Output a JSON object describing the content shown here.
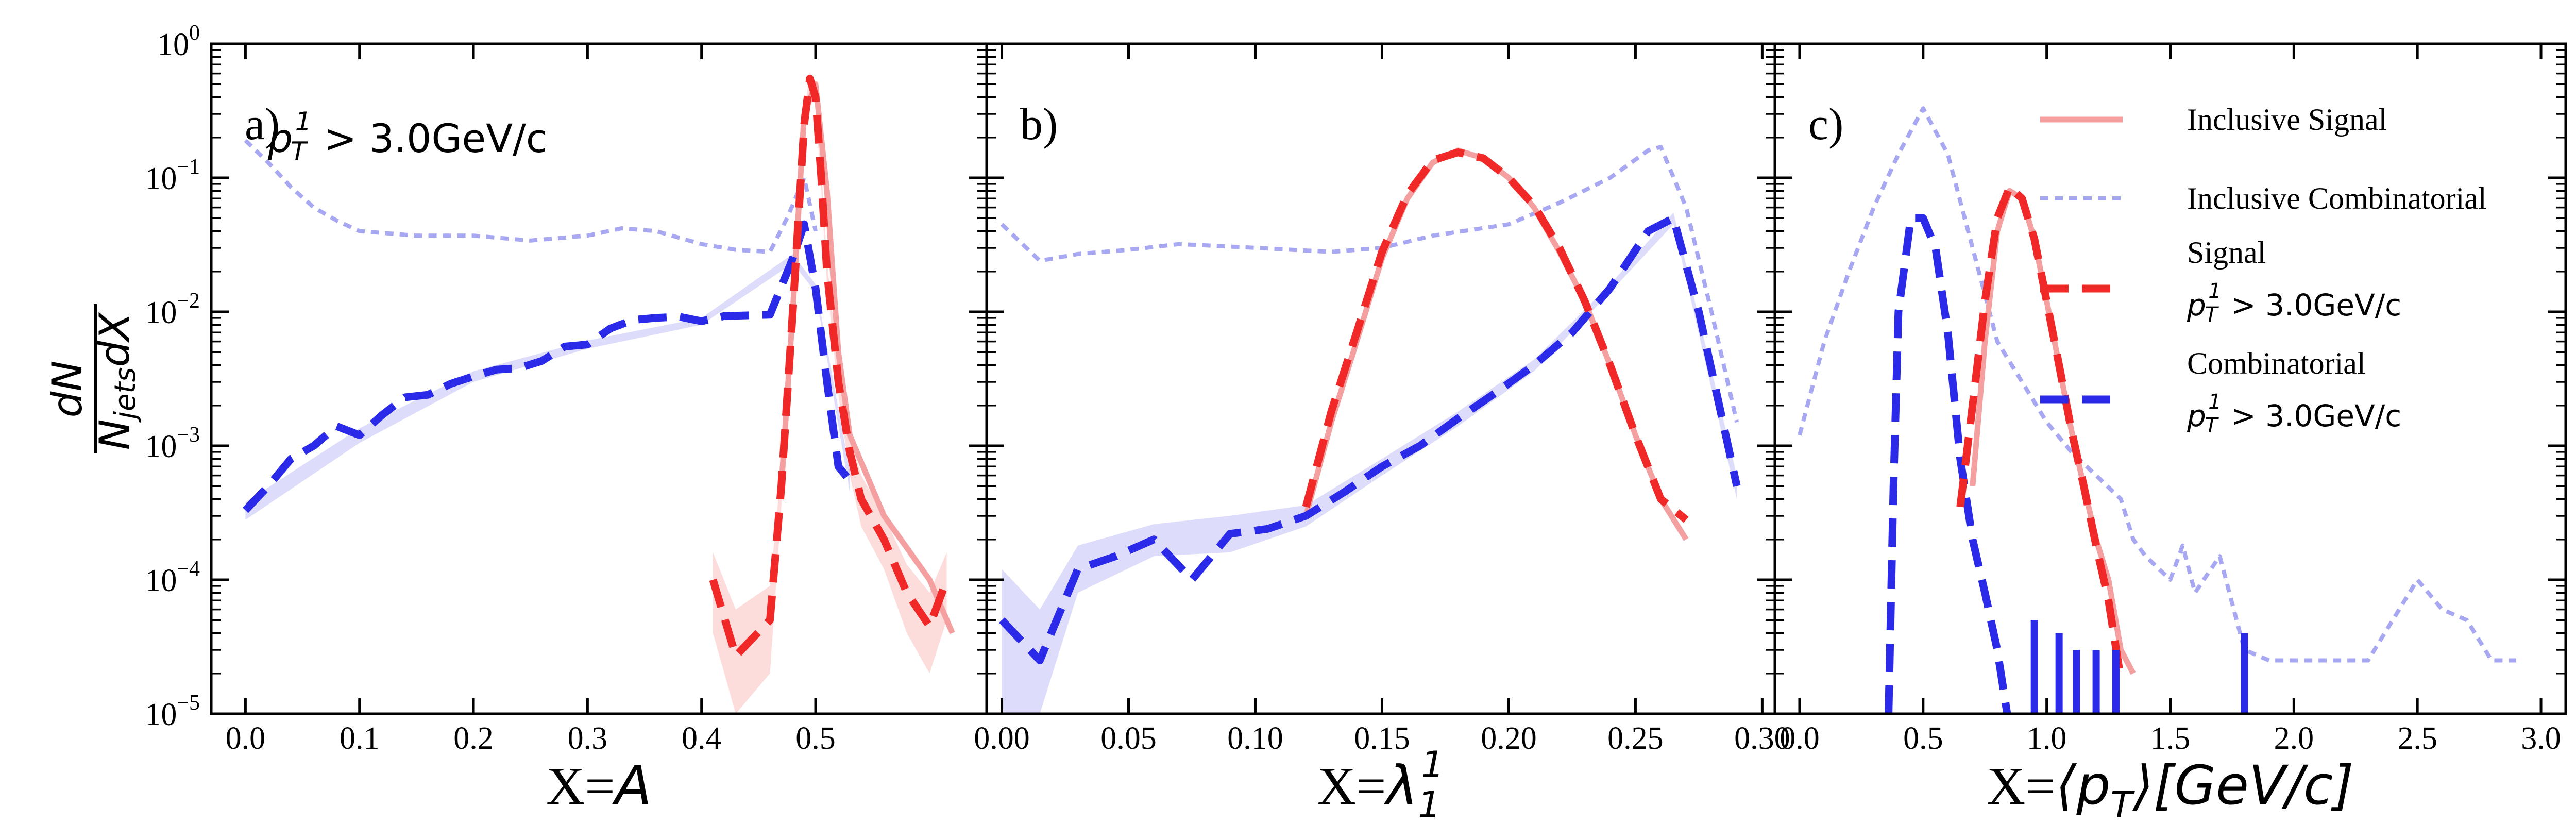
{
  "chart_data": {
    "type": "line",
    "yscale": "log",
    "ylim": [
      1e-05,
      1
    ],
    "ylabel": {
      "num": "dN",
      "den": "N",
      "den_sub": "jets",
      "den_tail": "dX"
    },
    "y_ticks": [
      {
        "v": 1e-05,
        "base": "10",
        "exp": "−5"
      },
      {
        "v": 0.0001,
        "base": "10",
        "exp": "−4"
      },
      {
        "v": 0.001,
        "base": "10",
        "exp": "−3"
      },
      {
        "v": 0.01,
        "base": "10",
        "exp": "−2"
      },
      {
        "v": 0.1,
        "base": "10",
        "exp": "−1"
      },
      {
        "v": 1,
        "base": "10",
        "exp": "0"
      }
    ],
    "legend": [
      {
        "id": "incl_sig",
        "label": "Inclusive Signal",
        "color": "#f4a0a0",
        "style": "solid"
      },
      {
        "id": "incl_comb",
        "label": "Inclusive Combinatorial",
        "color": "#a8a8f2",
        "style": "dotted"
      },
      {
        "id": "sig",
        "label": "Signal",
        "cut": "p",
        "sub": "T",
        "sup": "1",
        "cut_tail": " > 3.0GeV/c",
        "color": "#f02828",
        "style": "dashed"
      },
      {
        "id": "comb",
        "label": "Combinatorial",
        "cut": "p",
        "sub": "T",
        "sup": "1",
        "cut_tail": " > 3.0GeV/c",
        "color": "#2a2ae8",
        "style": "dashed"
      }
    ],
    "panels": [
      {
        "label": "a)",
        "annotation": {
          "p": "p",
          "sub": "T",
          "sup": "1",
          "tail": " > 3.0GeV/c"
        },
        "xlabel_prefix": "X=",
        "xlabel_math": "A",
        "xlim": [
          -0.03,
          0.65
        ],
        "xticks": [
          0.0,
          0.1,
          0.2,
          0.3,
          0.4,
          0.5
        ],
        "xtick_labels": [
          "0.0",
          "0.1",
          "0.2",
          "0.3",
          "0.4",
          "0.5"
        ],
        "series": {
          "incl_comb": {
            "x": [
              0.0,
              0.02,
              0.04,
              0.06,
              0.08,
              0.1,
              0.15,
              0.2,
              0.25,
              0.3,
              0.33,
              0.36,
              0.4,
              0.43,
              0.46,
              0.475,
              0.49,
              0.5
            ],
            "y": [
              0.19,
              0.13,
              0.085,
              0.06,
              0.048,
              0.04,
              0.037,
              0.037,
              0.034,
              0.037,
              0.042,
              0.04,
              0.032,
              0.029,
              0.028,
              0.05,
              0.1,
              0.04
            ]
          },
          "incl_sig": {
            "x": [
              0.47,
              0.48,
              0.49,
              0.5,
              0.51,
              0.52,
              0.53,
              0.56,
              0.6,
              0.62
            ],
            "y": [
              0.0005,
              0.01,
              0.3,
              0.5,
              0.08,
              0.005,
              0.0012,
              0.0003,
              0.0001,
              4e-05
            ]
          },
          "sig": {
            "x": [
              0.41,
              0.43,
              0.46,
              0.47,
              0.48,
              0.49,
              0.495,
              0.5,
              0.505,
              0.51,
              0.52,
              0.53,
              0.54,
              0.56,
              0.58,
              0.6,
              0.615
            ],
            "y": [
              0.0001,
              2.7e-05,
              5e-05,
              0.0005,
              0.01,
              0.25,
              0.55,
              0.4,
              0.1,
              0.02,
              0.003,
              0.0009,
              0.0004,
              0.0002,
              8e-05,
              4.5e-05,
              0.0001
            ]
          },
          "sig_band": {
            "x": [
              0.41,
              0.43,
              0.46,
              0.47,
              0.48,
              0.49,
              0.495,
              0.5,
              0.505,
              0.51,
              0.52,
              0.53,
              0.54,
              0.56,
              0.58,
              0.6,
              0.615
            ],
            "lo": [
              4e-05,
              1e-05,
              2e-05,
              0.00035,
              0.008,
              0.2,
              0.48,
              0.34,
              0.08,
              0.016,
              0.0024,
              0.0006,
              0.00025,
              0.00012,
              4e-05,
              2e-05,
              5e-05
            ],
            "hi": [
              0.00016,
              6e-05,
              9e-05,
              0.0007,
              0.012,
              0.3,
              0.62,
              0.46,
              0.12,
              0.024,
              0.0036,
              0.0012,
              0.0006,
              0.0003,
              0.00013,
              8e-05,
              0.00016
            ]
          },
          "comb": {
            "x": [
              0.0,
              0.02,
              0.04,
              0.06,
              0.08,
              0.1,
              0.12,
              0.14,
              0.16,
              0.18,
              0.2,
              0.22,
              0.24,
              0.26,
              0.28,
              0.3,
              0.32,
              0.34,
              0.36,
              0.38,
              0.4,
              0.42,
              0.44,
              0.46,
              0.48,
              0.49,
              0.5,
              0.51,
              0.52,
              0.53
            ],
            "y": [
              0.00033,
              0.0005,
              0.0008,
              0.001,
              0.0014,
              0.0012,
              0.0017,
              0.0023,
              0.0024,
              0.0029,
              0.0033,
              0.0037,
              0.0038,
              0.0043,
              0.0055,
              0.0057,
              0.0075,
              0.0087,
              0.009,
              0.0092,
              0.0085,
              0.0093,
              0.0094,
              0.0095,
              0.025,
              0.045,
              0.015,
              0.003,
              0.0007,
              0.00055
            ]
          },
          "comb_band": {
            "x": [
              0.0,
              0.1,
              0.2,
              0.3,
              0.4,
              0.48,
              0.5,
              0.53
            ],
            "lo": [
              0.00028,
              0.00105,
              0.003,
              0.0053,
              0.008,
              0.023,
              0.014,
              0.00045
            ],
            "hi": [
              0.00038,
              0.00135,
              0.0036,
              0.0061,
              0.009,
              0.027,
              0.016,
              0.00065
            ]
          }
        }
      },
      {
        "label": "b)",
        "xlabel_prefix": "X=",
        "xlabel_math": "λ",
        "xlabel_sub": "1",
        "xlabel_sup": "1",
        "xlim": [
          -0.006,
          0.305
        ],
        "xticks": [
          0.0,
          0.05,
          0.1,
          0.15,
          0.2,
          0.25,
          0.3
        ],
        "xtick_labels": [
          "0.00",
          "0.05",
          "0.10",
          "0.15",
          "0.20",
          "0.25",
          "0.30"
        ],
        "series": {
          "incl_comb": {
            "x": [
              0.0,
              0.015,
              0.03,
              0.05,
              0.07,
              0.1,
              0.13,
              0.15,
              0.17,
              0.2,
              0.22,
              0.24,
              0.255,
              0.26,
              0.27,
              0.28,
              0.29
            ],
            "y": [
              0.045,
              0.024,
              0.027,
              0.029,
              0.032,
              0.03,
              0.028,
              0.03,
              0.037,
              0.045,
              0.065,
              0.1,
              0.16,
              0.17,
              0.06,
              0.01,
              0.0015
            ]
          },
          "incl_sig": {
            "x": [
              0.12,
              0.13,
              0.14,
              0.15,
              0.16,
              0.17,
              0.18,
              0.19,
              0.2,
              0.21,
              0.22,
              0.23,
              0.24,
              0.25,
              0.26,
              0.27
            ],
            "y": [
              0.0003,
              0.0015,
              0.006,
              0.025,
              0.07,
              0.13,
              0.16,
              0.14,
              0.1,
              0.06,
              0.028,
              0.012,
              0.004,
              0.0012,
              0.0004,
              0.0002
            ]
          },
          "sig": {
            "x": [
              0.12,
              0.13,
              0.14,
              0.15,
              0.16,
              0.17,
              0.18,
              0.19,
              0.2,
              0.21,
              0.22,
              0.23,
              0.24,
              0.25,
              0.26,
              0.27
            ],
            "y": [
              0.00035,
              0.0018,
              0.007,
              0.028,
              0.075,
              0.135,
              0.155,
              0.14,
              0.1,
              0.062,
              0.03,
              0.012,
              0.004,
              0.0012,
              0.0004,
              0.00028
            ]
          },
          "comb": {
            "x": [
              0.0,
              0.015,
              0.03,
              0.045,
              0.06,
              0.075,
              0.09,
              0.105,
              0.12,
              0.135,
              0.15,
              0.165,
              0.18,
              0.195,
              0.21,
              0.225,
              0.24,
              0.255,
              0.265,
              0.275,
              0.29
            ],
            "y": [
              5e-05,
              2.5e-05,
              0.00012,
              0.00015,
              0.0002,
              0.0001,
              0.00022,
              0.00024,
              0.0003,
              0.00045,
              0.0007,
              0.001,
              0.0016,
              0.0025,
              0.004,
              0.007,
              0.015,
              0.04,
              0.05,
              0.01,
              0.0005
            ]
          },
          "comb_band": {
            "x": [
              0.0,
              0.015,
              0.03,
              0.06,
              0.09,
              0.12,
              0.15,
              0.18,
              0.21,
              0.24,
              0.265,
              0.29
            ],
            "lo": [
              1e-05,
              1e-05,
              8e-05,
              0.00015,
              0.00016,
              0.00025,
              0.0006,
              0.0014,
              0.0036,
              0.014,
              0.045,
              0.0004
            ],
            "hi": [
              0.00012,
              6e-05,
              0.00018,
              0.00026,
              0.0003,
              0.00036,
              0.0008,
              0.0018,
              0.0044,
              0.016,
              0.055,
              0.0006
            ]
          }
        }
      },
      {
        "label": "c)",
        "xlabel_prefix": "X=",
        "xlabel_math": "⟨p",
        "xlabel_sub": "T",
        "xlabel_tail": "⟩[GeV/c]",
        "xlim": [
          -0.1,
          3.1
        ],
        "xticks": [
          0.0,
          0.5,
          1.0,
          1.5,
          2.0,
          2.5,
          3.0
        ],
        "xtick_labels": [
          "0.0",
          "0.5",
          "1.0",
          "1.5",
          "2.0",
          "2.5",
          "3.0"
        ],
        "series": {
          "incl_comb": {
            "x": [
              0.0,
              0.1,
              0.2,
              0.3,
              0.4,
              0.5,
              0.6,
              0.7,
              0.8,
              0.9,
              1.0,
              1.1,
              1.2,
              1.3,
              1.35,
              1.4,
              1.5,
              1.55,
              1.6,
              1.7,
              1.8,
              1.9,
              2.0,
              2.1,
              2.2,
              2.3,
              2.4,
              2.5,
              2.6,
              2.7,
              2.8,
              2.9
            ],
            "y": [
              0.0012,
              0.006,
              0.02,
              0.06,
              0.15,
              0.33,
              0.15,
              0.03,
              0.006,
              0.003,
              0.0015,
              0.0009,
              0.0006,
              0.0004,
              0.0002,
              0.00015,
              0.0001,
              0.00018,
              8e-05,
              0.00015,
              3e-05,
              2.5e-05,
              2.5e-05,
              2.5e-05,
              2.5e-05,
              2.5e-05,
              5e-05,
              0.0001,
              6e-05,
              5e-05,
              2.5e-05,
              2.5e-05
            ]
          },
          "incl_sig": {
            "x": [
              0.7,
              0.75,
              0.8,
              0.85,
              0.9,
              0.95,
              1.0,
              1.05,
              1.1,
              1.15,
              1.2,
              1.25,
              1.3,
              1.35
            ],
            "y": [
              0.0005,
              0.006,
              0.04,
              0.08,
              0.07,
              0.035,
              0.012,
              0.004,
              0.0013,
              0.0005,
              0.0002,
              0.0001,
              3e-05,
              2e-05
            ]
          },
          "sig": {
            "x": [
              0.65,
              0.7,
              0.75,
              0.8,
              0.85,
              0.9,
              0.95,
              1.0,
              1.05,
              1.1,
              1.15,
              1.2,
              1.25,
              1.3
            ],
            "y": [
              0.00035,
              0.002,
              0.012,
              0.05,
              0.085,
              0.07,
              0.035,
              0.012,
              0.004,
              0.0013,
              0.0005,
              0.00018,
              7e-05,
              1.8e-05
            ]
          },
          "comb": {
            "x": [
              0.36,
              0.38,
              0.4,
              0.45,
              0.5,
              0.55,
              0.6,
              0.65,
              0.7,
              0.75,
              0.8,
              0.84
            ],
            "y": [
              1e-05,
              0.0005,
              0.01,
              0.05,
              0.05,
              0.03,
              0.007,
              0.0008,
              0.0002,
              8e-05,
              3e-05,
              1e-05
            ]
          },
          "comb_spikes": {
            "x": [
              0.95,
              1.05,
              1.12,
              1.2,
              1.28,
              1.8
            ],
            "y": [
              5e-05,
              4e-05,
              3e-05,
              3e-05,
              3e-05,
              4e-05
            ]
          }
        }
      }
    ]
  }
}
